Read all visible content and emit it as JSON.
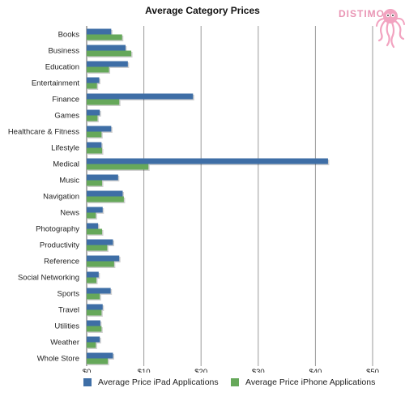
{
  "chart_data": {
    "type": "bar",
    "orientation": "horizontal",
    "title": "Average Category Prices",
    "categories": [
      "Books",
      "Business",
      "Education",
      "Entertainment",
      "Finance",
      "Games",
      "Healthcare & Fitness",
      "Lifestyle",
      "Medical",
      "Music",
      "Navigation",
      "News",
      "Photography",
      "Productivity",
      "Reference",
      "Social Networking",
      "Sports",
      "Travel",
      "Utilities",
      "Weather",
      "Whole Store"
    ],
    "series": [
      {
        "name": "Average Price iPad Applications",
        "color": "#3e6ea6",
        "values": [
          4.3,
          6.8,
          7.2,
          2.2,
          18.6,
          2.3,
          4.3,
          2.6,
          42.2,
          5.5,
          6.3,
          2.8,
          2.0,
          4.6,
          5.7,
          2.1,
          4.2,
          2.8,
          2.4,
          2.3,
          4.6
        ]
      },
      {
        "name": "Average Price iPhone Applications",
        "color": "#66a85a",
        "values": [
          6.2,
          7.8,
          3.9,
          1.8,
          5.7,
          1.9,
          2.6,
          2.7,
          10.8,
          2.7,
          6.5,
          1.6,
          2.7,
          3.6,
          4.8,
          1.7,
          2.3,
          2.6,
          2.6,
          1.6,
          3.7
        ]
      }
    ],
    "x_ticks": [
      "$0",
      "$10",
      "$20",
      "$30",
      "$40",
      "$50"
    ],
    "xlim": [
      0,
      50
    ],
    "grid": "vertical",
    "legend": "bottom"
  },
  "logo": {
    "text": "DISTIMO",
    "color": "#f2a3c0"
  }
}
